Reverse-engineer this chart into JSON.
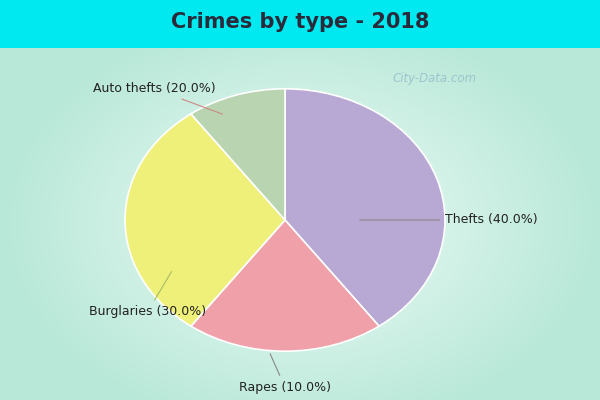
{
  "title": "Crimes by type - 2018",
  "slices": [
    {
      "label": "Thefts (40.0%)",
      "value": 40.0,
      "color": "#b8a9d4"
    },
    {
      "label": "Auto thefts (20.0%)",
      "value": 20.0,
      "color": "#f0a0a8"
    },
    {
      "label": "Burglaries (30.0%)",
      "value": 30.0,
      "color": "#eef07a"
    },
    {
      "label": "Rapes (10.0%)",
      "value": 10.0,
      "color": "#b8d4b0"
    }
  ],
  "bg_cyan": "#00e8f0",
  "bg_main": "#b8e8d8",
  "title_fontsize": 15,
  "label_fontsize": 9,
  "watermark": "City-Data.com",
  "title_color": "#2a2a3a",
  "startangle": 90,
  "title_bar_height": 0.12
}
